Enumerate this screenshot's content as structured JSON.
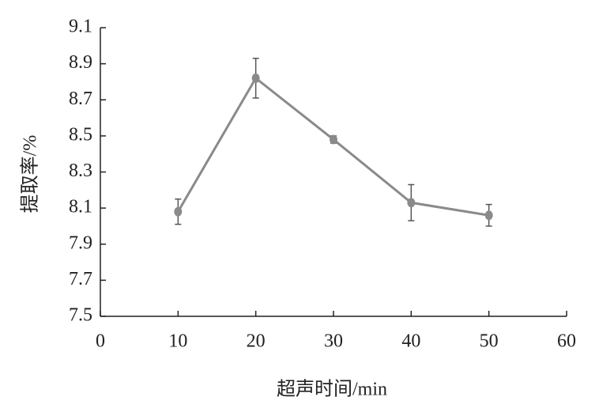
{
  "chart_data": {
    "type": "line",
    "x_label": "超声时间/min",
    "y_label": "提取率/%",
    "x": [
      10,
      20,
      30,
      40,
      50
    ],
    "values": [
      8.08,
      8.82,
      8.48,
      8.13,
      8.06
    ],
    "errors": [
      0.07,
      0.11,
      0.02,
      0.1,
      0.06
    ],
    "color": "#8a8a8a",
    "xlim": [
      0,
      60
    ],
    "xticks": [
      0,
      10,
      20,
      30,
      40,
      50,
      60
    ],
    "ylim": [
      7.5,
      9.1
    ],
    "yticks": [
      7.5,
      7.7,
      7.9,
      8.1,
      8.3,
      8.5,
      8.7,
      8.9,
      9.1
    ],
    "grid": false
  }
}
